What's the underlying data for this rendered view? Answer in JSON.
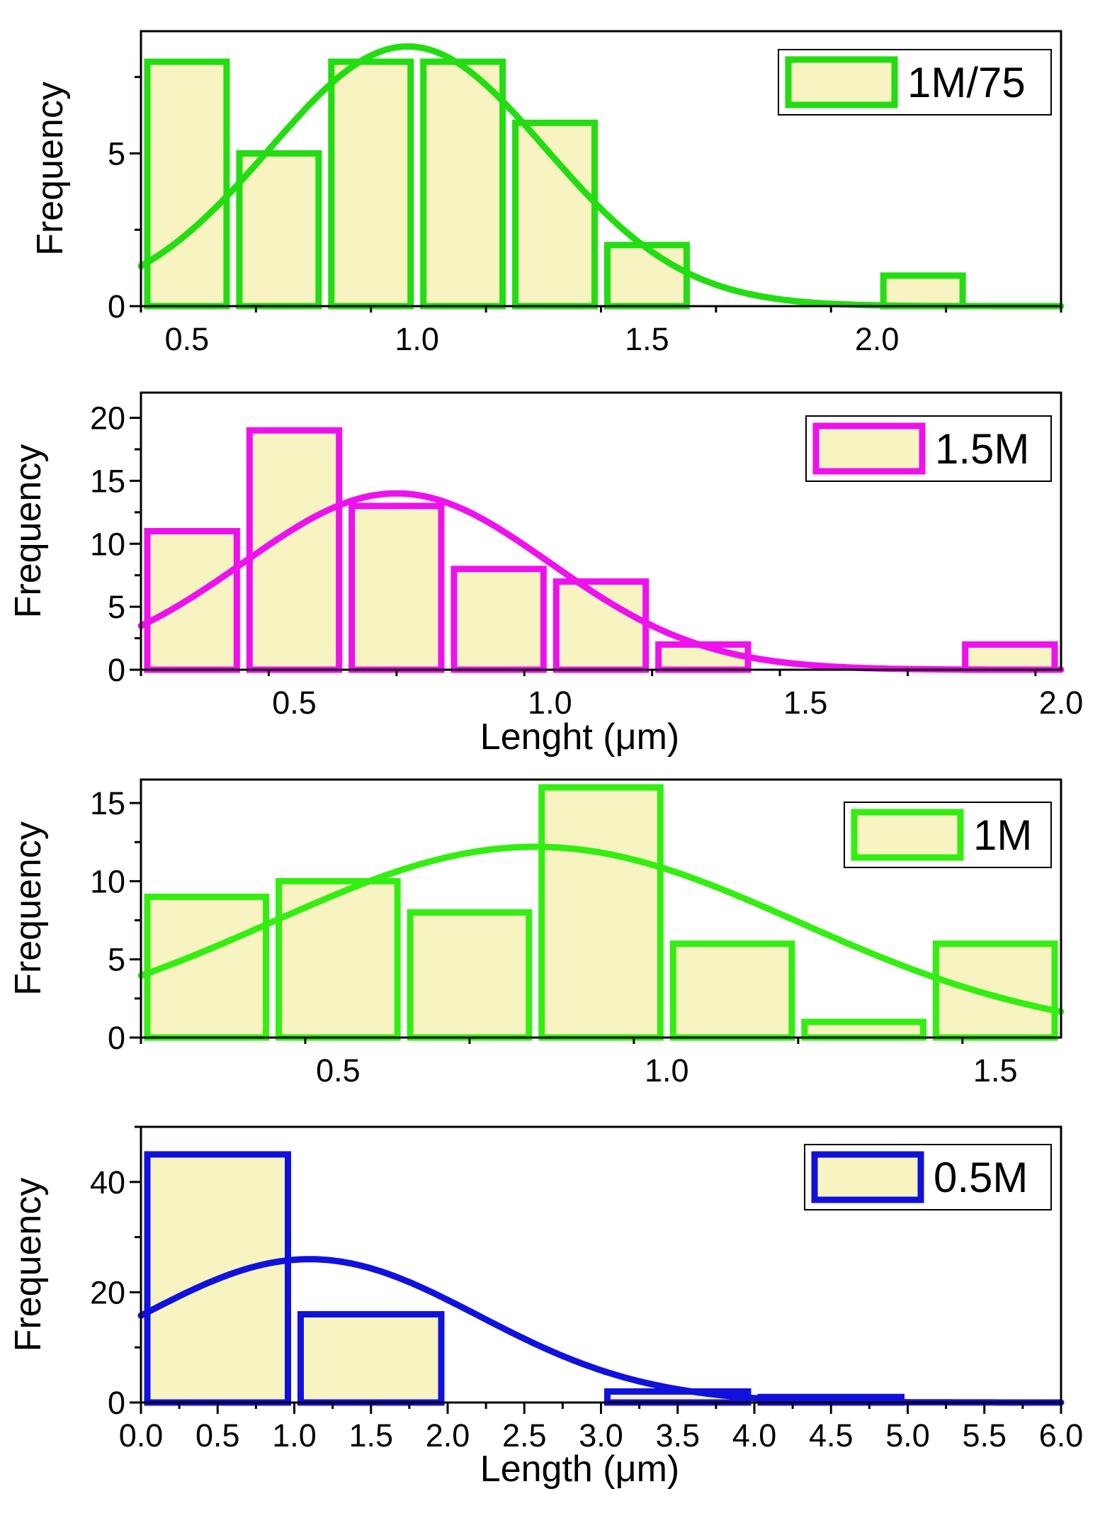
{
  "figure_style": {
    "bar_fill": "#f7f4c1",
    "axis_color": "#000000",
    "background": "#ffffff"
  },
  "chart_data": [
    {
      "type": "bar",
      "id": "panel-1m75",
      "legend": "1M/75",
      "color": "#22dd11",
      "xlabel": "",
      "ylabel": "Frequency",
      "xlim": [
        0.4,
        2.4
      ],
      "ylim": [
        0,
        9
      ],
      "xticks": [
        0.5,
        1.0,
        1.5,
        2.0
      ],
      "xtick_labels": [
        "0.5",
        "1.0",
        "1.5",
        "2.0"
      ],
      "yticks": [
        0,
        5
      ],
      "ytick_labels": [
        "0",
        "5"
      ],
      "bin_edges": [
        0.4,
        0.6,
        0.8,
        1.0,
        1.2,
        1.4,
        1.6,
        1.8,
        2.0,
        2.2
      ],
      "values": [
        8,
        5,
        8,
        8,
        6,
        2,
        0,
        0,
        1
      ],
      "fit": {
        "mean": 0.98,
        "sd": 0.3,
        "peak": 8.5
      }
    },
    {
      "type": "bar",
      "id": "panel-1-5m",
      "legend": "1.5M",
      "color": "#ee11ee",
      "xlabel": "Lenght (μm)",
      "ylabel": "Frequency",
      "xlim": [
        0.2,
        2.0
      ],
      "ylim": [
        0,
        22
      ],
      "xticks": [
        0.5,
        1.0,
        1.5,
        2.0
      ],
      "xtick_labels": [
        "0.5",
        "1.0",
        "1.5",
        "2.0"
      ],
      "yticks": [
        0,
        5,
        10,
        15,
        20
      ],
      "ytick_labels": [
        "0",
        "5",
        "10",
        "15",
        "20"
      ],
      "bin_edges": [
        0.2,
        0.4,
        0.6,
        0.8,
        1.0,
        1.2,
        1.4,
        1.6,
        1.8,
        2.0
      ],
      "values": [
        11,
        19,
        13,
        8,
        7,
        2,
        0,
        0,
        2
      ],
      "fit": {
        "mean": 0.7,
        "sd": 0.3,
        "peak": 14
      }
    },
    {
      "type": "bar",
      "id": "panel-1m",
      "legend": "1M",
      "color": "#33ee11",
      "xlabel": "",
      "ylabel": "Frequency",
      "xlim": [
        0.2,
        1.6
      ],
      "ylim": [
        0,
        16.5
      ],
      "xticks": [
        0.5,
        1.0,
        1.5
      ],
      "xtick_labels": [
        "0.5",
        "1.0",
        "1.5"
      ],
      "yticks": [
        0,
        5,
        10,
        15
      ],
      "ytick_labels": [
        "0",
        "5",
        "10",
        "15"
      ],
      "bin_edges": [
        0.2,
        0.4,
        0.6,
        0.8,
        1.0,
        1.2,
        1.4,
        1.6
      ],
      "values": [
        9,
        10,
        8,
        16,
        6,
        1,
        6
      ],
      "fit": {
        "mean": 0.8,
        "sd": 0.4,
        "peak": 12.2
      }
    },
    {
      "type": "bar",
      "id": "panel-0-5m",
      "legend": "0.5M",
      "color": "#1111dd",
      "xlabel": "Length (μm)",
      "ylabel": "Frequency",
      "xlim": [
        0.0,
        6.0
      ],
      "ylim": [
        0,
        50
      ],
      "xticks": [
        0.0,
        0.5,
        1.0,
        1.5,
        2.0,
        2.5,
        3.0,
        3.5,
        4.0,
        4.5,
        5.0,
        5.5,
        6.0
      ],
      "xtick_labels": [
        "0.0",
        "0.5",
        "1.0",
        "1.5",
        "2.0",
        "2.5",
        "3.0",
        "3.5",
        "4.0",
        "4.5",
        "5.0",
        "5.5",
        "6.0"
      ],
      "yticks": [
        0,
        20,
        40
      ],
      "ytick_labels": [
        "0",
        "20",
        "40"
      ],
      "bin_edges": [
        0,
        1,
        2,
        3,
        4,
        5,
        6
      ],
      "values": [
        45,
        16,
        0,
        2,
        1,
        0
      ],
      "fit": {
        "mean": 1.1,
        "sd": 1.1,
        "peak": 26
      }
    }
  ]
}
